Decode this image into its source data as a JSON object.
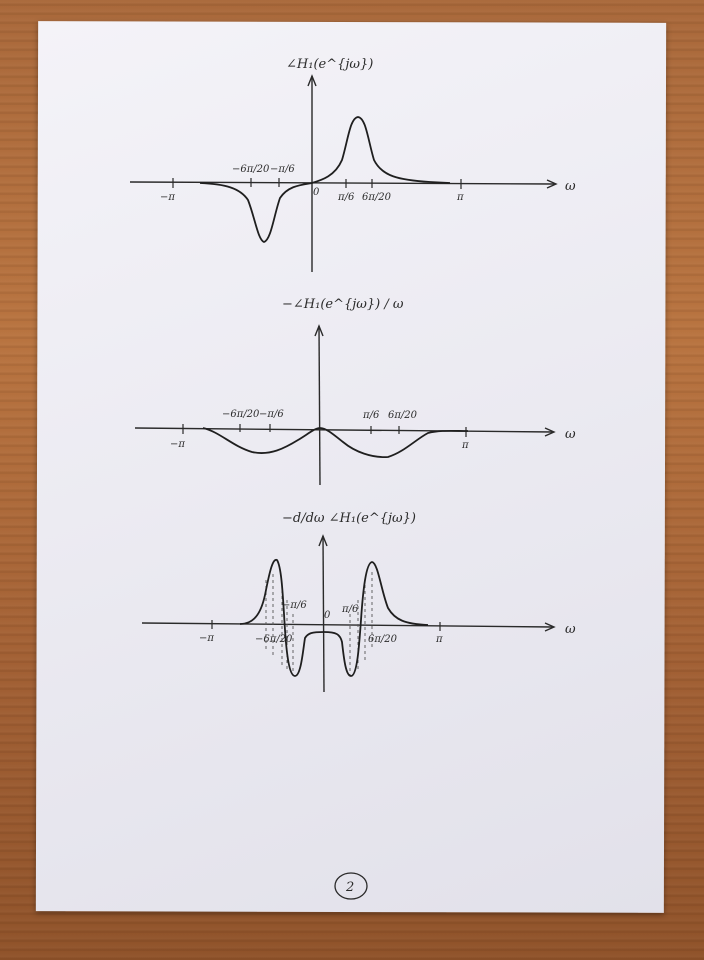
{
  "page": {
    "number": "2"
  },
  "plots": [
    {
      "ylabel": "∠H₁(e^{jω})",
      "xlabel": "ω",
      "ticks": {
        "neg_pi": "−π",
        "pi": "π",
        "origin": "0",
        "pi_over_6": "π/6",
        "six_pi_20": "6π/20",
        "neg_six_pi_20": "−6π/20",
        "neg_pi_over_6": "−π/6"
      }
    },
    {
      "ylabel": "−∠H₁(e^{jω}) / ω",
      "xlabel": "ω",
      "ticks": {
        "neg_pi": "−π",
        "pi": "π",
        "neg_six_pi_20": "−6π/20",
        "neg_pi_over_6": "−π/6",
        "pi_over_6": "π/6",
        "six_pi_20": "6π/20"
      }
    },
    {
      "ylabel": "−d/dω ∠H₁(e^{jω})",
      "xlabel": "ω",
      "ticks": {
        "neg_pi": "−π",
        "pi": "π",
        "origin": "0",
        "neg_six_pi_20": "−6π/20",
        "neg_pi_over_6": "−π/6",
        "pi_over_6": "π/6",
        "six_pi_20": "6π/20"
      }
    }
  ]
}
